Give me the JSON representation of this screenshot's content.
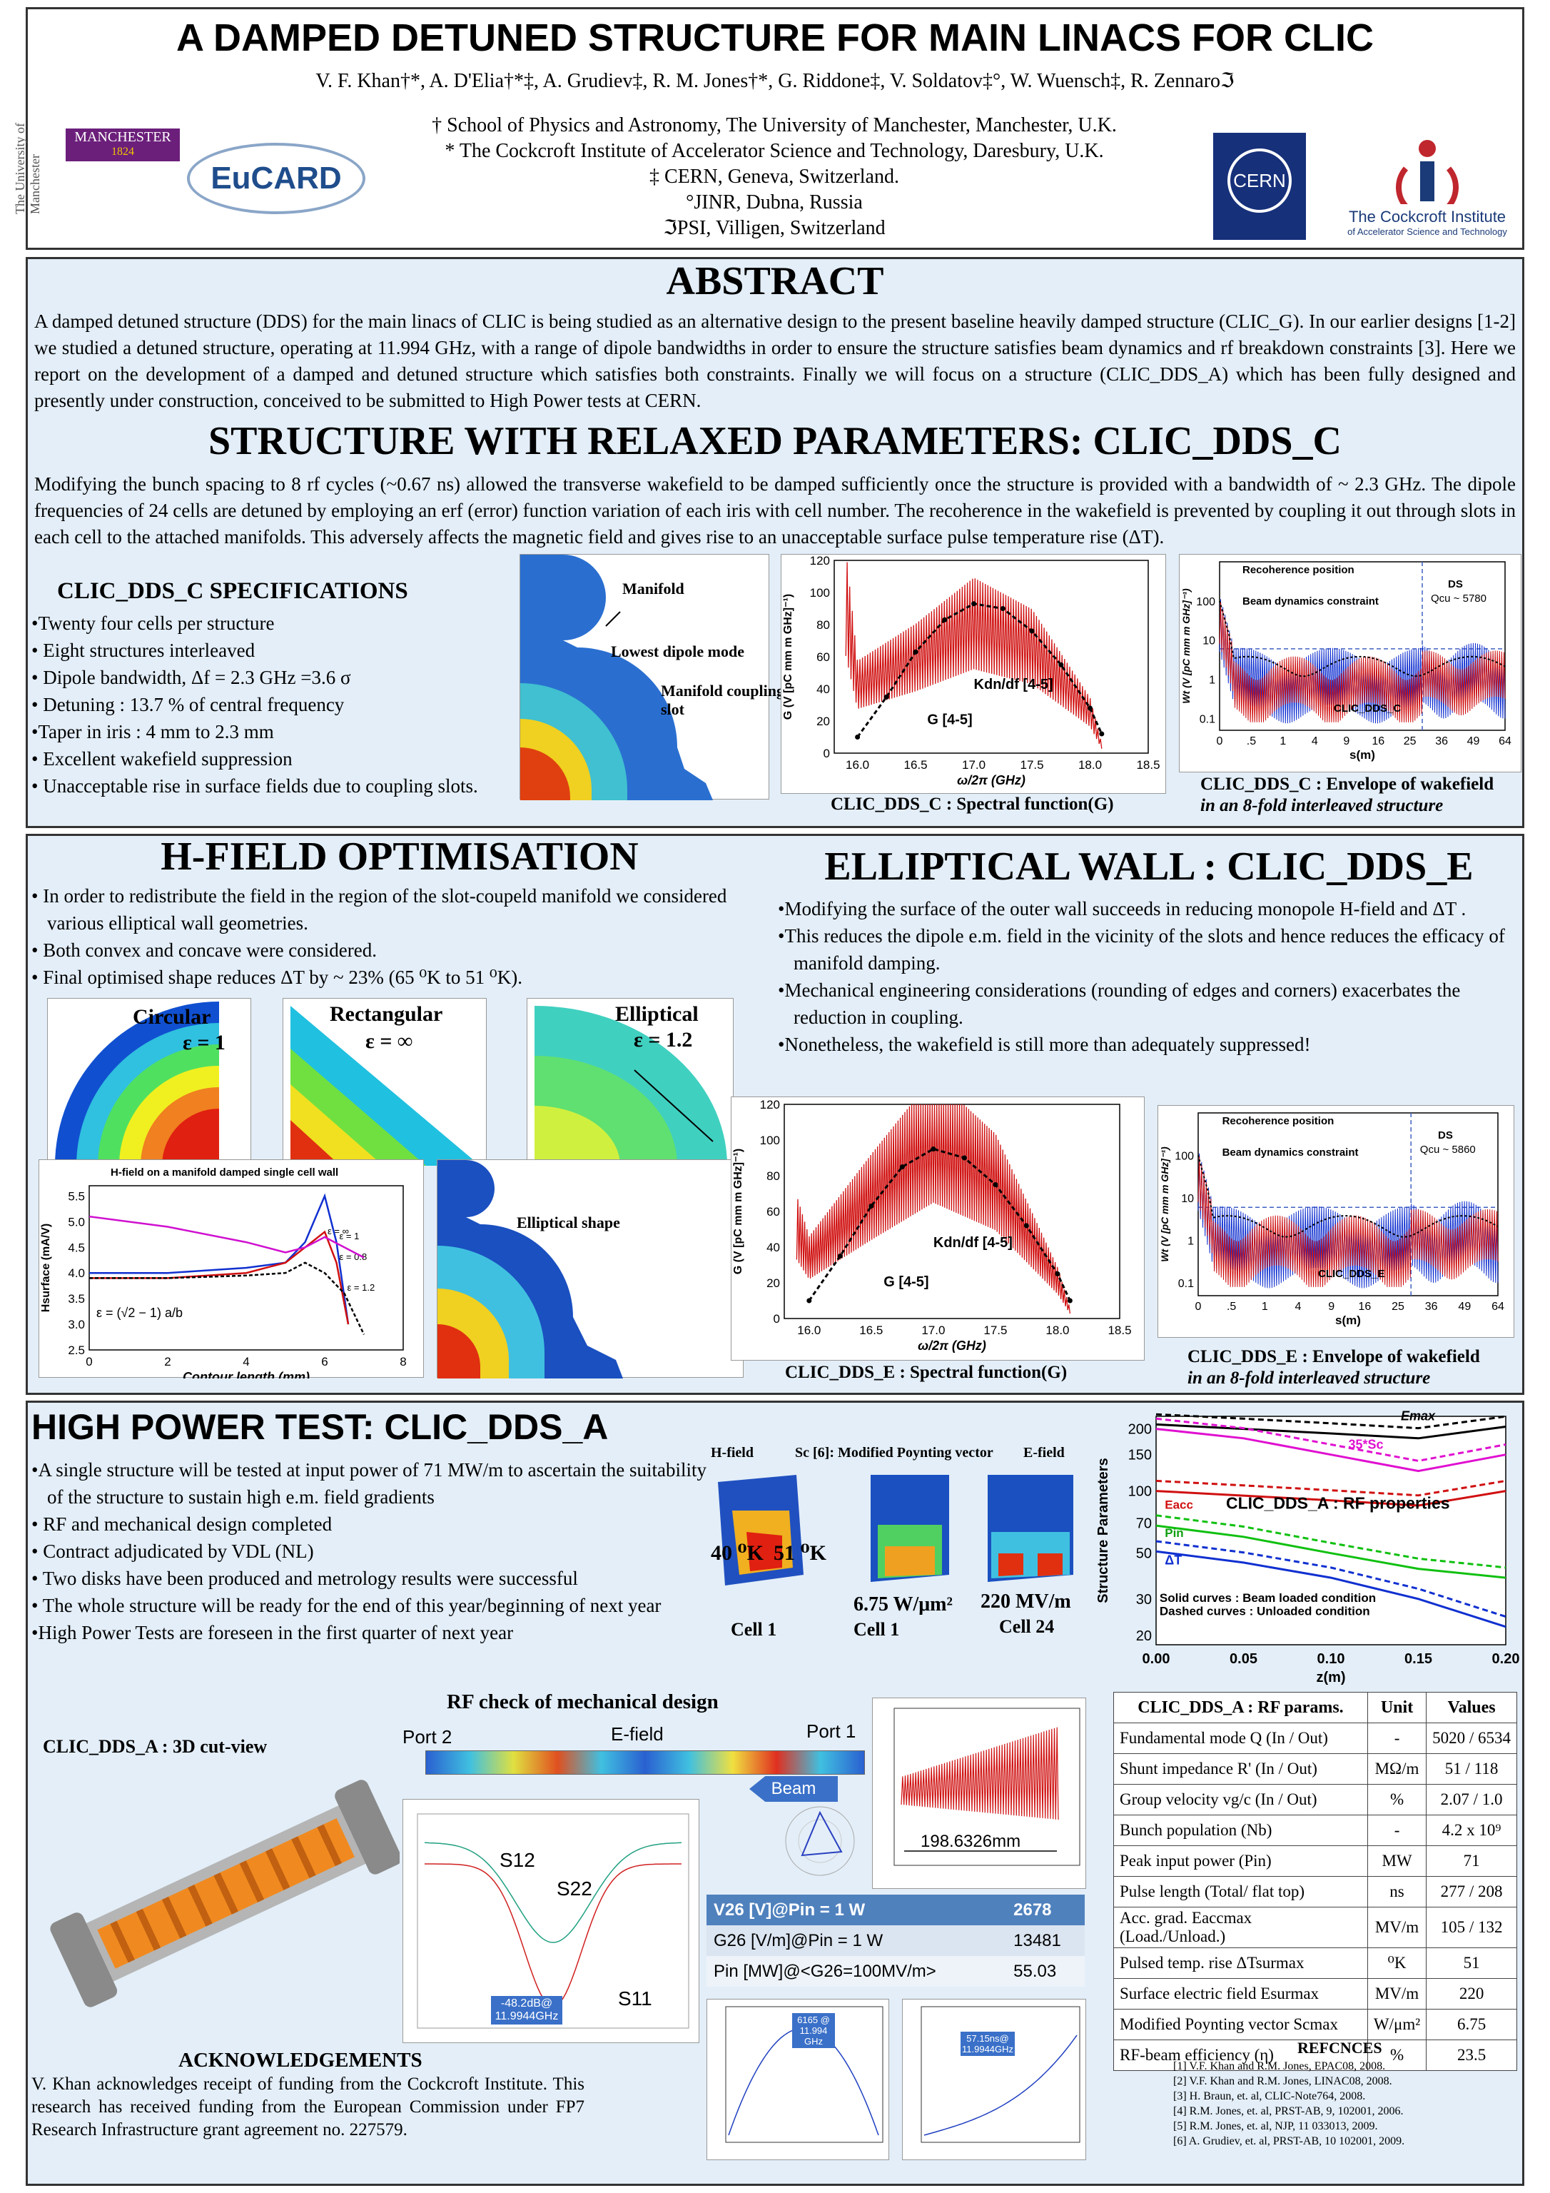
{
  "header": {
    "title": "A DAMPED DETUNED STRUCTURE FOR MAIN LINACS FOR CLIC",
    "authors": "V. F. Khan†*, A. D'Elia†*‡, A. Grudiev‡, R. M. Jones†*, G. Riddone‡, V. Soldatov‡°, W. Wuensch‡, R. Zennaroℑ",
    "affiliations": [
      "† School of Physics and Astronomy, The University of Manchester, Manchester, U.K.",
      "* The Cockcroft Institute of Accelerator Science and Technology, Daresbury, U.K.",
      "‡ CERN, Geneva, Switzerland.",
      "°JINR, Dubna, Russia",
      "ℑPSI, Villigen, Switzerland"
    ],
    "logos": {
      "manchester": "MANCHESTER",
      "manchester_year": "1824",
      "uom": "The University of Manchester",
      "eucard": "EuCARD",
      "cern": "CERN",
      "cockcroft": "The Cockcroft Institute",
      "cockcroft_sub": "of Accelerator Science and Technology"
    }
  },
  "abstract": {
    "heading": "ABSTRACT",
    "text": "A damped detuned structure (DDS) for the main linacs of CLIC is being studied as an alternative design to the present baseline heavily damped structure (CLIC_G). In our earlier designs [1-2] we studied a detuned structure, operating at 11.994 GHz, with a range of dipole bandwidths in order to ensure the structure satisfies beam dynamics and rf breakdown constraints [3]. Here we report on the development of a damped and detuned structure which satisfies both constraints. Finally we will focus on a structure (CLIC_DDS_A) which has been fully designed and presently under construction, conceived to be submitted to High Power tests at CERN."
  },
  "ddsc": {
    "heading": "STRUCTURE WITH RELAXED PARAMETERS: CLIC_DDS_C",
    "text": "Modifying the bunch spacing to 8 rf cycles (~0.67 ns) allowed the transverse wakefield to be damped sufficiently once the structure is provided with a bandwidth of ~ 2.3 GHz. The dipole frequencies of 24 cells are detuned by employing an erf (error) function variation of each iris with cell number. The recoherence in the wakefield is prevented by coupling it out through slots in each cell to the attached manifolds. This adversely affects the magnetic field and gives rise to an unacceptable surface pulse temperature rise (ΔT).",
    "spec_heading": "CLIC_DDS_C SPECIFICATIONS",
    "specs": [
      "•Twenty four cells per structure",
      "• Eight structures interleaved",
      "• Dipole bandwidth, Δf = 2.3 GHz =3.6 σ",
      "• Detuning : 13.7 % of central frequency",
      "•Taper in iris : 4 mm to 2.3 mm",
      "• Excellent wakefield suppression",
      "• Unacceptable rise in surface fields due to coupling slots."
    ],
    "fig_labels": {
      "manifold": "Manifold",
      "dipole": "Lowest dipole mode",
      "slot": "Manifold coupling slot"
    },
    "spectral_caption": "CLIC_DDS_C : Spectral function(G)",
    "wake_caption_1": "CLIC_DDS_C : Envelope of wakefield",
    "wake_caption_2": "in an 8-fold interleaved structure"
  },
  "hfield": {
    "heading": "H-FIELD OPTIMISATION",
    "bullets": [
      "• In order to redistribute the field in the region of the slot-coupeld manifold we considered various elliptical wall geometries.",
      "• Both convex and concave were considered.",
      "• Final optimised shape reduces ΔT by ~ 23% (65 ⁰K to 51 ⁰K)."
    ],
    "shapes": [
      {
        "name": "Circular",
        "eps": "ε = 1"
      },
      {
        "name": "Rectangular",
        "eps": "ε = ∞"
      },
      {
        "name": "Elliptical",
        "eps": "ε = 1.2"
      }
    ],
    "hplot_title": "H-field on a manifold damped single cell wall",
    "hplot_xlabel": "Contour length (mm)",
    "hplot_ylabel": "Hsurface (mA/V)",
    "formula": "ε = (√2 − 1) a/b",
    "elliptical_shape": "Elliptical shape"
  },
  "ddse": {
    "heading": "ELLIPTICAL WALL : CLIC_DDS_E",
    "bullets": [
      "•Modifying the surface of the outer wall succeeds in reducing monopole H-field and ΔT .",
      "•This reduces the dipole e.m. field in the vicinity of the slots and hence reduces the efficacy of manifold damping.",
      "•Mechanical engineering considerations (rounding of edges and corners) exacerbates the reduction in coupling.",
      "•Nonetheless, the wakefield is still more than adequately suppressed!"
    ],
    "spectral_caption": "CLIC_DDS_E : Spectral function(G)",
    "wake_caption_1": "CLIC_DDS_E : Envelope of wakefield",
    "wake_caption_2": "in an 8-fold interleaved structure"
  },
  "hpt": {
    "heading": "HIGH POWER TEST: CLIC_DDS_A",
    "bullets": [
      "•A single structure will be tested at input power of 71 MW/m to ascertain the suitability of the structure to sustain high e.m. field gradients",
      "• RF and mechanical design completed",
      "• Contract adjudicated by VDL (NL)",
      "• Two disks have been produced and metrology results were successful",
      "• The whole structure will be ready for the end of this year/beginning of next year",
      "•High Power Tests are foreseen in the first quarter of next year"
    ],
    "field_labels": {
      "h": "H-field",
      "sc": "Sc [6]: Modified Poynting vector",
      "e": "E-field",
      "t1": "40 ⁰K",
      "t2": "51 ⁰K",
      "sc_val": "6.75 W/μm²",
      "e_val": "220 MV/m",
      "cell1a": "Cell 1",
      "cell1b": "Cell 1",
      "cell24": "Cell 24"
    },
    "rf_heading": "RF check of mechanical design",
    "cutview": "CLIC_DDS_A : 3D cut-view",
    "port2": "Port 2",
    "port1": "Port 1",
    "efield": "E-field",
    "beam": "Beam",
    "length": "198.6326mm",
    "s12": "S12",
    "s22": "S22",
    "s11": "S11",
    "marker": "-48.2dB@ 11.9944GHz",
    "vtable": [
      [
        "V26 [V]@Pin = 1 W",
        "2678"
      ],
      [
        "G26 [V/m]@Pin = 1 W",
        "13481"
      ],
      [
        "Pin [MW]@<G26=100MV/m>",
        "55.03"
      ]
    ],
    "small_plot_1": "6165 @ 11.994 GHz",
    "small_plot_2": "57.15ns@ 11.9944GHz"
  },
  "rfprops": {
    "title": "CLIC_DDS_A : RF properties",
    "xlabel": "z(m)",
    "ylabel": "Structure Parameters",
    "labels": {
      "emax": "Emax",
      "sc": "35*Sc",
      "eacc": "Eacc",
      "pin": "Pin",
      "dt": "ΔT"
    },
    "legend_1": "Solid curves : Beam loaded condition",
    "legend_2": "Dashed curves : Unloaded condition"
  },
  "params_table": {
    "header": [
      "CLIC_DDS_A : RF params.",
      "Unit",
      "Values"
    ],
    "rows": [
      [
        "Fundamental mode Q (In / Out)",
        "-",
        "5020 / 6534"
      ],
      [
        "Shunt impedance R' (In / Out)",
        "MΩ/m",
        "51 / 118"
      ],
      [
        "Group velocity vg/c (In / Out)",
        "%",
        "2.07 / 1.0"
      ],
      [
        "Bunch population (Nb)",
        "-",
        "4.2 x 10⁹"
      ],
      [
        "Peak input power (Pin)",
        "MW",
        "71"
      ],
      [
        "Pulse length (Total/ flat top)",
        "ns",
        "277 / 208"
      ],
      [
        "Acc. grad. Eaccmax (Load./Unload.)",
        "MV/m",
        "105 / 132"
      ],
      [
        "Pulsed temp. rise ΔTsurmax",
        "⁰K",
        "51"
      ],
      [
        "Surface electric field Esurmax",
        "MV/m",
        "220"
      ],
      [
        "Modified Poynting vector Scmax",
        "W/μm²",
        "6.75"
      ],
      [
        "RF-beam efficiency (η)",
        "%",
        "23.5"
      ]
    ]
  },
  "ack": {
    "heading": "ACKNOWLEDGEMENTS",
    "text": "V. Khan acknowledges receipt of funding from the Cockcroft Institute. This research has received funding from the European Commission under FP7 Research Infrastructure grant agreement no. 227579."
  },
  "refs": {
    "heading": "REFCNCES",
    "items": [
      "[1] V.F. Khan and R.M. Jones, EPAC08, 2008.",
      "[2] V.F. Khan and R.M. Jones, LINAC08, 2008.",
      "[3] H. Braun, et. al, CLIC-Note764, 2008.",
      "[4] R.M. Jones, et. al, PRST-AB, 9, 102001, 2006.",
      "[5] R.M. Jones, et. al, NJP, 11 033013, 2009.",
      "[6] A. Grudiev, et. al, PRST-AB, 10 102001, 2009."
    ]
  },
  "chart_data": [
    {
      "type": "line",
      "id": "spectral-c",
      "xlabel": "ω/2π (GHz)",
      "ylabel": "G (V [pC mm m GHz]⁻¹)",
      "x_ticks": [
        "16.0",
        "16.5",
        "17.0",
        "17.5",
        "18.0",
        "18.5"
      ],
      "y_ticks": [
        "0",
        "20",
        "40",
        "60",
        "80",
        "100",
        "120"
      ],
      "xlim": [
        15.8,
        18.5
      ],
      "ylim": [
        0,
        120
      ],
      "series": [
        {
          "name": "Kdn/df [4-5]",
          "x": [
            16.0,
            16.25,
            16.5,
            16.75,
            17.0,
            17.25,
            17.5,
            17.75,
            18.0,
            18.1
          ],
          "values": [
            10,
            35,
            63,
            83,
            93,
            90,
            76,
            55,
            28,
            12
          ]
        },
        {
          "name": "G [4-5]",
          "x": [
            15.9,
            16.0,
            16.5,
            17.0,
            17.5,
            18.0,
            18.1
          ],
          "values": [
            110,
            50,
            70,
            95,
            78,
            30,
            5
          ]
        }
      ]
    },
    {
      "type": "line",
      "id": "wake-c",
      "xlabel": "s(m)",
      "ylabel": "Wt (V [pC mm m GHz]⁻¹)",
      "log_y": true,
      "x_ticks": [
        "0",
        ".5",
        "1",
        "4",
        "9",
        "16",
        "25",
        "36",
        "49",
        "64"
      ],
      "y_ticks": [
        "0.1",
        "1",
        "10",
        "100"
      ],
      "annotations": [
        "Recoherence position",
        "Beam dynamics constraint",
        "DS",
        "Qcu ~ 5780",
        "CLIC_DDS_C"
      ]
    },
    {
      "type": "line",
      "id": "hfield-plot",
      "xlabel": "Contour length (mm)",
      "ylabel": "Hsurface (mA/V)",
      "x_ticks": [
        "0",
        "2",
        "4",
        "6",
        "8"
      ],
      "y_ticks": [
        "2.5",
        "3.0",
        "3.5",
        "4.0",
        "4.5",
        "5.0",
        "5.5"
      ],
      "xlim": [
        0,
        8
      ],
      "ylim": [
        2.5,
        5.7
      ],
      "series": [
        {
          "name": "ε = 1",
          "x": [
            0,
            2,
            4,
            5,
            5.5,
            6,
            6.3,
            6.6
          ],
          "values": [
            4.0,
            4.0,
            4.1,
            4.2,
            4.6,
            5.5,
            4.6,
            3.0
          ]
        },
        {
          "name": "ε = 0.8",
          "x": [
            0,
            2,
            4,
            5,
            5.5,
            6,
            6.3,
            6.6
          ],
          "values": [
            3.9,
            3.9,
            4.0,
            4.2,
            4.5,
            4.8,
            4.2,
            3.0
          ]
        },
        {
          "name": "ε = 1.2",
          "x": [
            0,
            2,
            4,
            5,
            5.5,
            6,
            6.5,
            7
          ],
          "values": [
            3.9,
            3.9,
            3.95,
            4.0,
            4.2,
            4.0,
            3.6,
            2.8
          ]
        },
        {
          "name": "ε = ∞",
          "x": [
            0,
            2,
            4,
            5,
            5.5,
            6,
            7
          ],
          "values": [
            5.1,
            4.9,
            4.6,
            4.4,
            4.5,
            4.7,
            4.3
          ]
        }
      ]
    },
    {
      "type": "line",
      "id": "spectral-e",
      "xlabel": "ω/2π (GHz)",
      "ylabel": "G (V [pC mm m GHz]⁻¹)",
      "x_ticks": [
        "16.0",
        "16.5",
        "17.0",
        "17.5",
        "18.0",
        "18.5"
      ],
      "y_ticks": [
        "0",
        "20",
        "40",
        "60",
        "80",
        "100",
        "120"
      ],
      "xlim": [
        15.8,
        18.5
      ],
      "ylim": [
        0,
        120
      ],
      "series": [
        {
          "name": "Kdn/df [4-5]",
          "x": [
            16.0,
            16.25,
            16.5,
            16.75,
            17.0,
            17.25,
            17.5,
            17.75,
            18.0,
            18.1
          ],
          "values": [
            10,
            35,
            63,
            85,
            95,
            90,
            75,
            52,
            25,
            10
          ]
        },
        {
          "name": "G [4-5]",
          "x": [
            15.9,
            16.0,
            16.5,
            17.0,
            17.5,
            18.0,
            18.1
          ],
          "values": [
            60,
            40,
            80,
            118,
            90,
            25,
            5
          ]
        }
      ]
    },
    {
      "type": "line",
      "id": "wake-e",
      "xlabel": "s(m)",
      "ylabel": "Wt (V [pC mm m GHz]⁻¹)",
      "log_y": true,
      "x_ticks": [
        "0",
        ".5",
        "1",
        "4",
        "9",
        "16",
        "25",
        "36",
        "49",
        "64"
      ],
      "y_ticks": [
        "0.1",
        "1",
        "10",
        "100"
      ],
      "annotations": [
        "Recoherence position",
        "Beam dynamics constraint",
        "DS",
        "Qcu ~ 5860",
        "CLIC_DDS_E"
      ]
    },
    {
      "type": "line",
      "id": "rf-props",
      "xlabel": "z(m)",
      "ylabel": "Structure Parameters",
      "x_ticks": [
        "0.00",
        "0.05",
        "0.10",
        "0.15",
        "0.20"
      ],
      "y_ticks": [
        "20",
        "30",
        "50",
        "70",
        "100",
        "150",
        "200"
      ],
      "xlim": [
        0,
        0.2
      ],
      "series": [
        {
          "name": "Emax",
          "x": [
            0,
            0.05,
            0.1,
            0.15,
            0.2
          ],
          "values": [
            210,
            200,
            190,
            180,
            205
          ]
        },
        {
          "name": "35*Sc",
          "x": [
            0,
            0.05,
            0.1,
            0.15,
            0.2
          ],
          "values": [
            200,
            180,
            150,
            125,
            150
          ]
        },
        {
          "name": "Eacc",
          "x": [
            0,
            0.05,
            0.1,
            0.15,
            0.2
          ],
          "values": [
            100,
            95,
            90,
            85,
            100
          ]
        },
        {
          "name": "Pin",
          "x": [
            0,
            0.05,
            0.1,
            0.15,
            0.2
          ],
          "values": [
            68,
            60,
            50,
            42,
            38
          ]
        },
        {
          "name": "ΔT",
          "x": [
            0,
            0.05,
            0.1,
            0.15,
            0.2
          ],
          "values": [
            51,
            45,
            38,
            30,
            22
          ]
        }
      ]
    }
  ]
}
